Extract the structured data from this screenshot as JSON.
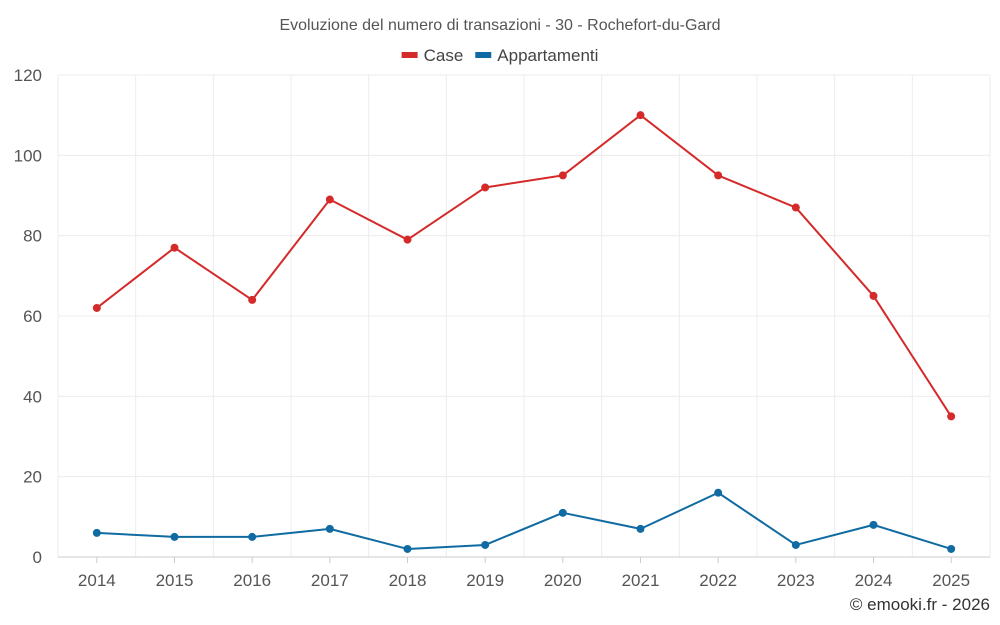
{
  "chart_data": {
    "type": "line",
    "title": "Evoluzione del numero di transazioni - 30 - Rochefort-du-Gard",
    "categories": [
      "2014",
      "2015",
      "2016",
      "2017",
      "2018",
      "2019",
      "2020",
      "2021",
      "2022",
      "2023",
      "2024",
      "2025"
    ],
    "series": [
      {
        "name": "Case",
        "color": "#d42a2a",
        "values": [
          62,
          77,
          64,
          89,
          79,
          92,
          95,
          110,
          95,
          87,
          65,
          35
        ]
      },
      {
        "name": "Appartamenti",
        "color": "#0f6ba1",
        "values": [
          6,
          5,
          5,
          7,
          2,
          3,
          11,
          7,
          16,
          3,
          8,
          2
        ]
      }
    ],
    "ylim": [
      0,
      120
    ],
    "yticks": [
      0,
      20,
      40,
      60,
      80,
      100,
      120
    ],
    "xlabel": "",
    "ylabel": "",
    "grid": true,
    "legend": "top-center"
  },
  "credit": "© emooki.fr - 2026"
}
